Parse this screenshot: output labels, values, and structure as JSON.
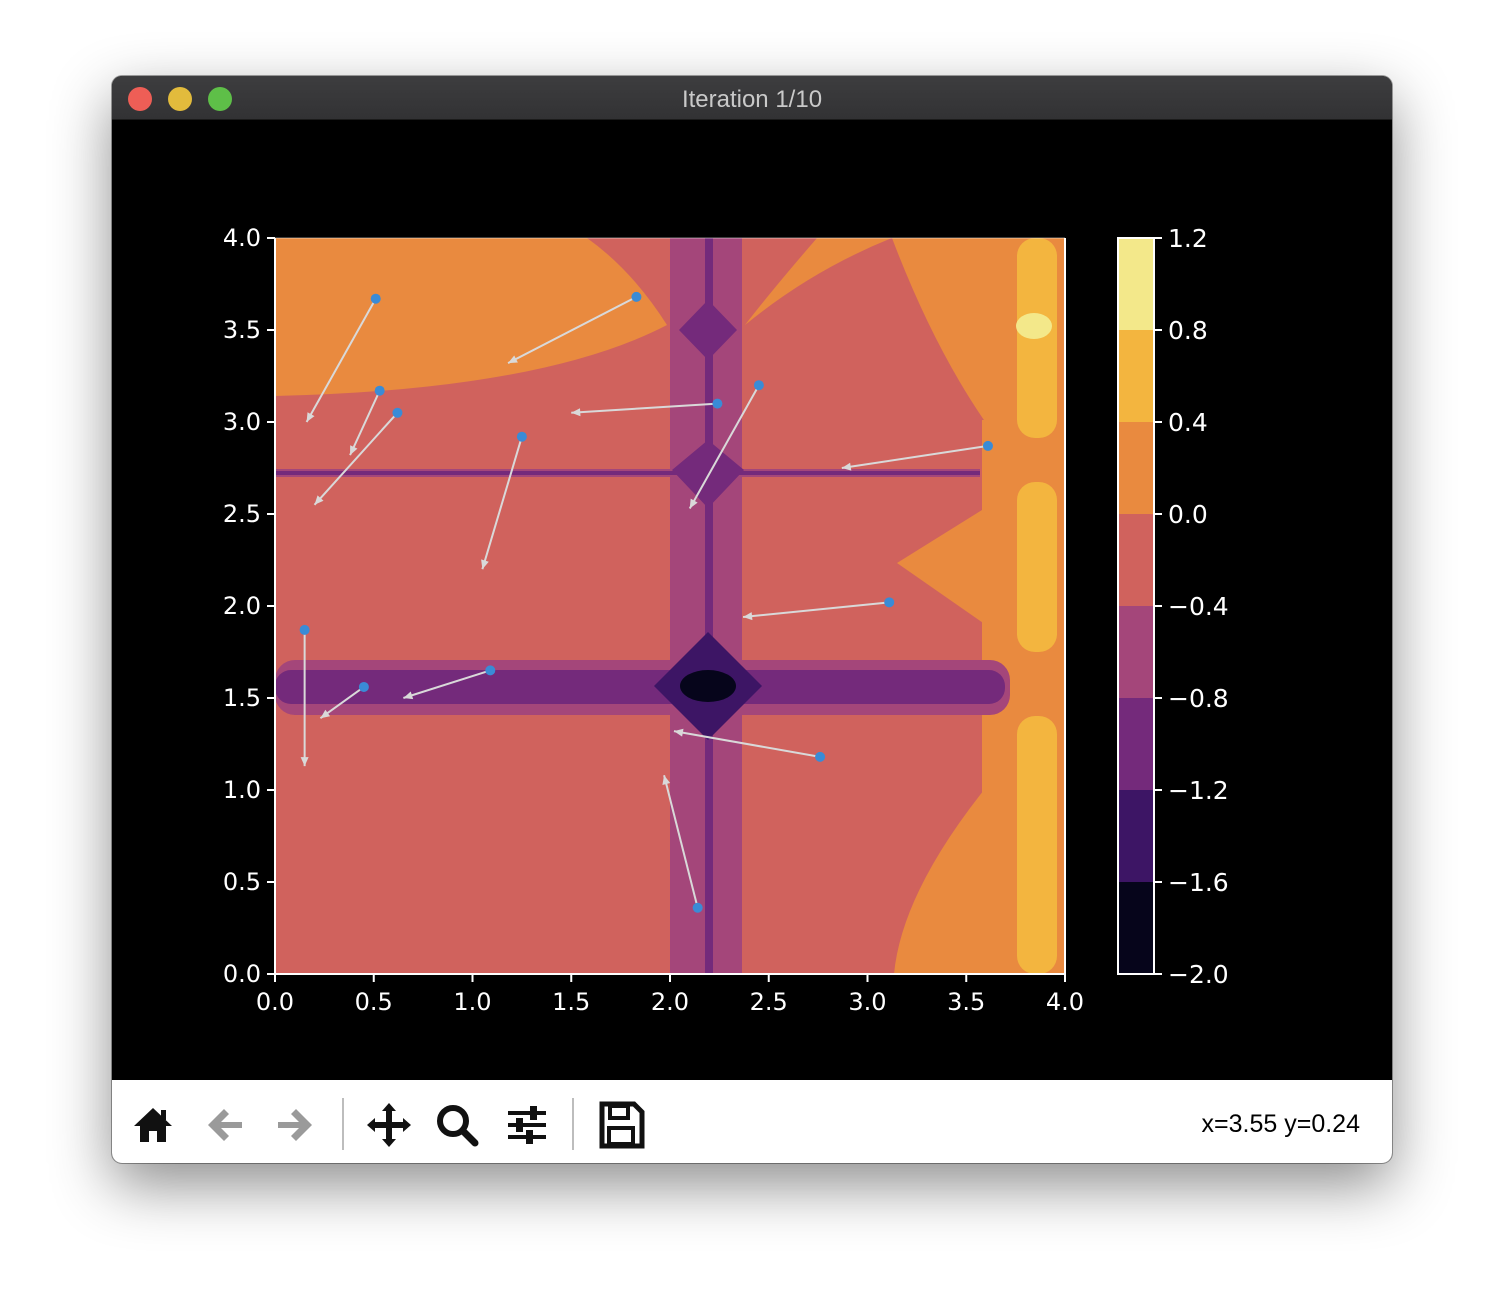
{
  "window": {
    "title": "Iteration 1/10"
  },
  "toolbar": {
    "buttons": [
      {
        "name": "home",
        "icon": "home-icon"
      },
      {
        "name": "back",
        "icon": "arrow-left-icon"
      },
      {
        "name": "forward",
        "icon": "arrow-right-icon"
      },
      {
        "name": "pan",
        "icon": "move-icon"
      },
      {
        "name": "zoom",
        "icon": "magnifier-icon"
      },
      {
        "name": "configure",
        "icon": "sliders-icon"
      },
      {
        "name": "save",
        "icon": "floppy-icon"
      }
    ],
    "coords": "x=3.55 y=0.24"
  },
  "colors": {
    "levels": [
      "#06051b",
      "#3d1565",
      "#742a7b",
      "#a4467a",
      "#d0625d",
      "#e98a3f",
      "#f3b53f",
      "#f3e88a"
    ],
    "point": "#3a8bd6",
    "arrow": "#d9d9d9"
  },
  "chart_data": {
    "type": "contourf",
    "xlim": [
      0,
      4
    ],
    "ylim": [
      0,
      4
    ],
    "xticks": [
      "0.0",
      "0.5",
      "1.0",
      "1.5",
      "2.0",
      "2.5",
      "3.0",
      "3.5",
      "4.0"
    ],
    "yticks": [
      "0.0",
      "0.5",
      "1.0",
      "1.5",
      "2.0",
      "2.5",
      "3.0",
      "3.5",
      "4.0"
    ],
    "colorbar": {
      "range": [
        -2.0,
        1.2
      ],
      "boundaries": [
        -2.0,
        -1.6,
        -1.2,
        -0.8,
        -0.4,
        0.0,
        0.4,
        0.8,
        1.2
      ],
      "tick_labels": [
        "−2.0",
        "−1.6",
        "−1.2",
        "−0.8",
        "−0.4",
        "0.0",
        "0.4",
        "0.8",
        "1.2"
      ]
    },
    "points": [
      {
        "x": 0.51,
        "y": 3.67,
        "dx": -0.35,
        "dy": -0.67
      },
      {
        "x": 1.83,
        "y": 3.68,
        "dx": -0.65,
        "dy": -0.36
      },
      {
        "x": 0.53,
        "y": 3.17,
        "dx": -0.15,
        "dy": -0.35
      },
      {
        "x": 0.62,
        "y": 3.05,
        "dx": -0.42,
        "dy": -0.5
      },
      {
        "x": 2.24,
        "y": 3.1,
        "dx": -0.74,
        "dy": -0.05
      },
      {
        "x": 2.45,
        "y": 3.2,
        "dx": -0.35,
        "dy": -0.67
      },
      {
        "x": 1.25,
        "y": 2.92,
        "dx": -0.2,
        "dy": -0.72
      },
      {
        "x": 3.61,
        "y": 2.87,
        "dx": -0.74,
        "dy": -0.12
      },
      {
        "x": 3.11,
        "y": 2.02,
        "dx": -0.74,
        "dy": -0.08
      },
      {
        "x": 0.15,
        "y": 1.87,
        "dx": 0.0,
        "dy": -0.74
      },
      {
        "x": 1.09,
        "y": 1.65,
        "dx": -0.44,
        "dy": -0.15
      },
      {
        "x": 0.45,
        "y": 1.56,
        "dx": -0.22,
        "dy": -0.17
      },
      {
        "x": 2.76,
        "y": 1.18,
        "dx": -0.74,
        "dy": 0.14
      },
      {
        "x": 2.14,
        "y": 0.36,
        "dx": -0.17,
        "dy": 0.72
      }
    ]
  }
}
